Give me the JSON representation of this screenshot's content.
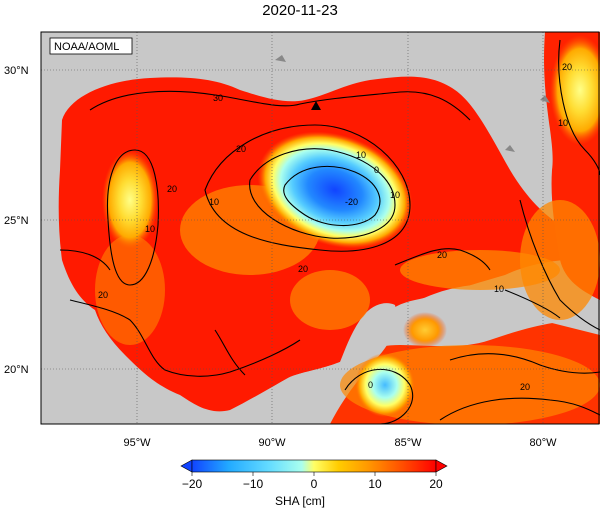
{
  "title": "2020-11-23",
  "credit": "NOAA/AOML",
  "lat_ticks": [
    {
      "value": 30,
      "label": "30°N"
    },
    {
      "value": 25,
      "label": "25°N"
    },
    {
      "value": 20,
      "label": "20°N"
    }
  ],
  "lon_ticks": [
    {
      "value": -95,
      "label": "95°W"
    },
    {
      "value": -90,
      "label": "90°W"
    },
    {
      "value": -85,
      "label": "85°W"
    },
    {
      "value": -80,
      "label": "80°W"
    }
  ],
  "contour_labels": [
    "30",
    "20",
    "10",
    "0",
    "-20",
    "10",
    "20",
    "10",
    "20",
    "20",
    "10",
    "0",
    "20",
    "20",
    "10",
    "10",
    "20"
  ],
  "colorbar": {
    "label": "SHA [cm]",
    "ticks": [
      "−20",
      "−10",
      "0",
      "10",
      "20"
    ],
    "min": -20,
    "max": 20
  },
  "colors": {
    "land": "#c8c8c8",
    "high": "#ff0000",
    "mid_high": "#ff5500",
    "mid": "#ffa500",
    "zero": "#ffff66",
    "low": "#33aaff",
    "very_low": "#1144ff"
  }
}
